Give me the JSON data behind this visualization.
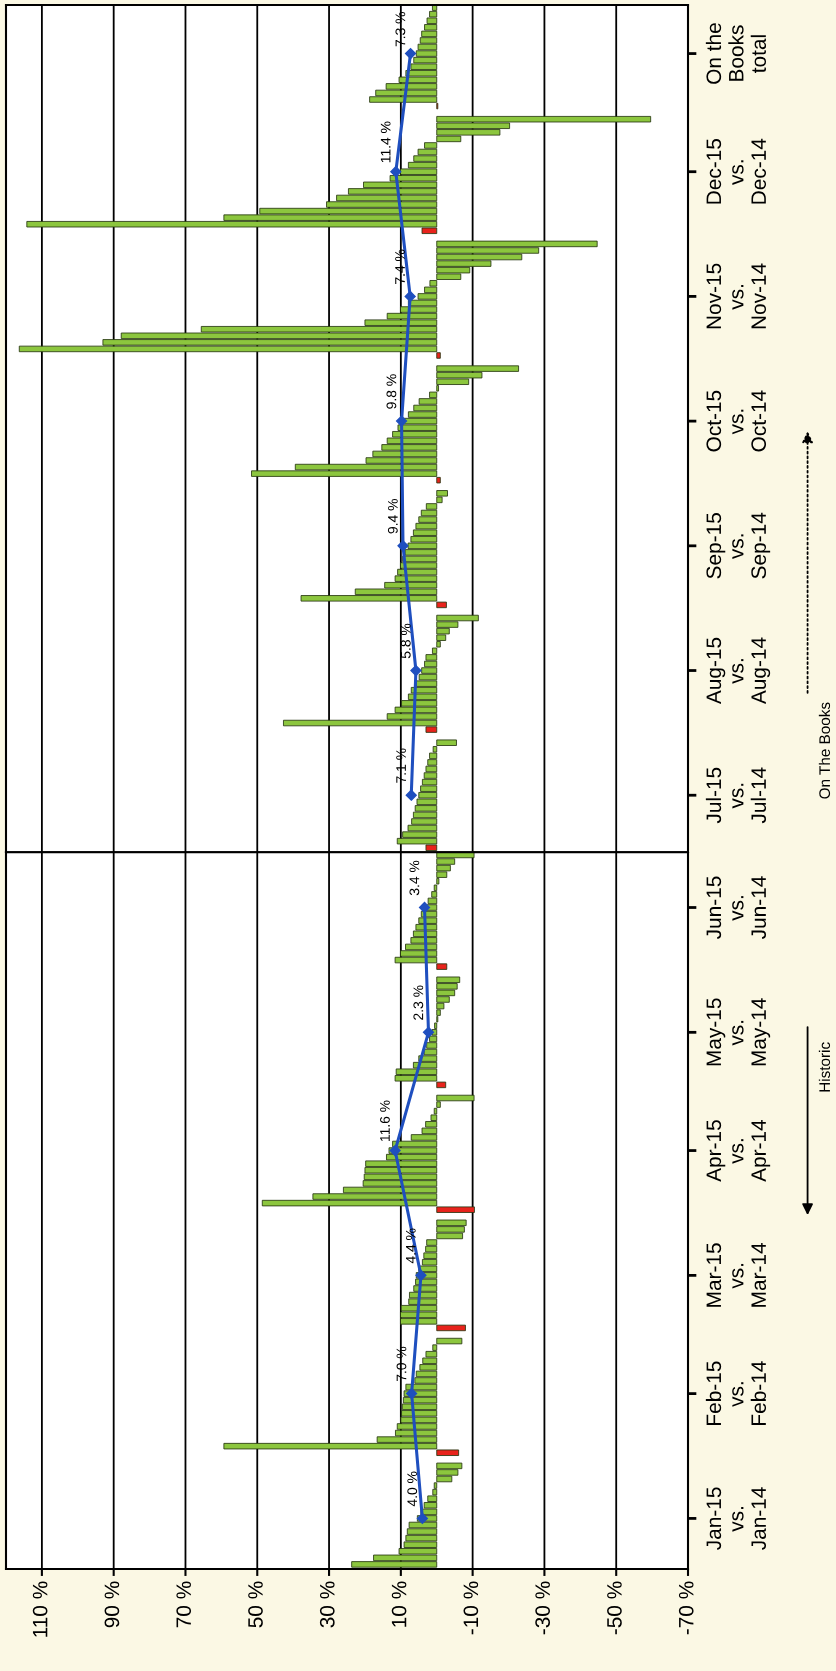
{
  "chart_data": [
    {
      "type": "bar",
      "orientation": "horizontal",
      "tick_labels": "y",
      "xlim": [
        120,
        -70
      ],
      "xticks": [
        110,
        90,
        70,
        50,
        30,
        10,
        -10,
        -30,
        -50,
        -70
      ],
      "grid": "x",
      "categories": [
        null,
        null,
        null,
        null,
        null,
        null,
        null,
        "On the\nBooks\ntotal",
        null,
        null,
        null,
        null,
        null,
        null,
        null,
        null,
        null,
        null,
        null,
        null,
        null,
        null,
        null,
        null,
        null,
        "Dec-15\nvs.\nDec-14",
        null,
        null,
        null,
        null,
        null,
        null,
        null,
        null,
        null,
        null,
        null,
        null,
        null,
        null,
        null,
        null,
        null,
        null,
        "Nov-15\nvs.\nNov-14",
        null,
        null,
        null,
        null,
        null,
        null,
        null,
        null,
        null,
        null,
        null,
        null,
        null,
        null,
        null,
        null,
        null,
        null,
        "Oct-15\nvs.\nOct-14",
        null,
        null,
        null,
        null,
        null,
        null,
        null,
        null,
        null,
        null,
        null,
        null,
        null,
        null,
        null,
        null,
        null,
        null,
        "Sep-15\nvs.\nSep-14",
        null,
        null,
        null,
        null,
        null,
        null,
        null,
        null,
        null,
        null,
        null,
        null,
        null,
        null,
        null,
        null,
        null,
        null,
        "Aug-15\nvs.\nAug-14",
        null,
        null,
        null,
        null,
        null,
        null,
        null,
        null,
        null,
        null,
        null,
        null,
        null,
        null,
        null,
        null,
        null,
        null,
        "Jul-15\nvs.\nJul-14",
        null,
        null,
        null,
        null,
        null,
        null,
        null,
        null
      ],
      "series": [
        {
          "values": [
            1.2,
            2.0,
            2.7,
            3.4,
            4.2,
            4.6,
            5.2,
            5.7,
            6.4,
            7.2,
            8.6,
            10.5,
            14.1,
            17.0,
            18.7,
            -0.3,
            null,
            -59.6,
            -20.3,
            -17.6,
            -6.7,
            3.4,
            5.2,
            6.4,
            7.9,
            10.1,
            13.0,
            20.4,
            24.6,
            27.9,
            30.7,
            49.3,
            59.3,
            114.2,
            4.1,
            null,
            -44.7,
            -28.4,
            -23.7,
            -15.1,
            -9.2,
            -6.7,
            1.9,
            3.4,
            5.2,
            7.9,
            10.1,
            13.8,
            20.0,
            65.6,
            87.9,
            93.0,
            116.3,
            -1.0,
            null,
            -22.8,
            -12.6,
            -8.9,
            -0.5,
            2.0,
            4.9,
            6.4,
            7.9,
            9.3,
            10.8,
            12.3,
            13.8,
            15.3,
            17.8,
            19.7,
            39.4,
            51.6,
            -1.0,
            null,
            -3.0,
            -1.5,
            2.9,
            4.3,
            5.0,
            5.8,
            6.5,
            7.2,
            8.0,
            8.8,
            9.5,
            10.1,
            10.9,
            11.6,
            14.5,
            22.7,
            37.8,
            -2.7,
            null,
            -11.6,
            -5.9,
            -3.5,
            -2.5,
            -1.0,
            1.2,
            3.0,
            3.4,
            4.2,
            4.9,
            5.7,
            7.1,
            7.9,
            9.8,
            11.6,
            13.8,
            42.7,
            3.0,
            null,
            -5.5,
            1.0,
            2.0,
            2.5,
            3.0,
            3.5,
            4.0,
            4.5,
            5.0,
            5.5,
            6.0,
            6.5,
            7.0,
            8.0,
            9.5,
            11.0,
            3.0
          ],
          "colors": [
            "#8cc63e",
            "#8cc63e",
            "#8cc63e",
            "#8cc63e",
            "#8cc63e",
            "#8cc63e",
            "#8cc63e",
            "#8cc63e",
            "#8cc63e",
            "#8cc63e",
            "#8cc63e",
            "#8cc63e",
            "#8cc63e",
            "#8cc63e",
            "#8cc63e",
            "#e8231c",
            null,
            "#8cc63e",
            "#8cc63e",
            "#8cc63e",
            "#8cc63e",
            "#8cc63e",
            "#8cc63e",
            "#8cc63e",
            "#8cc63e",
            "#8cc63e",
            "#8cc63e",
            "#8cc63e",
            "#8cc63e",
            "#8cc63e",
            "#8cc63e",
            "#8cc63e",
            "#8cc63e",
            "#8cc63e",
            "#e8231c",
            null,
            "#8cc63e",
            "#8cc63e",
            "#8cc63e",
            "#8cc63e",
            "#8cc63e",
            "#8cc63e",
            "#8cc63e",
            "#8cc63e",
            "#8cc63e",
            "#8cc63e",
            "#8cc63e",
            "#8cc63e",
            "#8cc63e",
            "#8cc63e",
            "#8cc63e",
            "#8cc63e",
            "#8cc63e",
            "#e8231c",
            null,
            "#8cc63e",
            "#8cc63e",
            "#8cc63e",
            "#8cc63e",
            "#8cc63e",
            "#8cc63e",
            "#8cc63e",
            "#8cc63e",
            "#8cc63e",
            "#8cc63e",
            "#8cc63e",
            "#8cc63e",
            "#8cc63e",
            "#8cc63e",
            "#8cc63e",
            "#8cc63e",
            "#8cc63e",
            "#e8231c",
            null,
            "#8cc63e",
            "#8cc63e",
            "#8cc63e",
            "#8cc63e",
            "#8cc63e",
            "#8cc63e",
            "#8cc63e",
            "#8cc63e",
            "#8cc63e",
            "#8cc63e",
            "#8cc63e",
            "#8cc63e",
            "#8cc63e",
            "#8cc63e",
            "#8cc63e",
            "#8cc63e",
            "#8cc63e",
            "#e8231c",
            null,
            "#8cc63e",
            "#8cc63e",
            "#8cc63e",
            "#8cc63e",
            "#8cc63e",
            "#8cc63e",
            "#8cc63e",
            "#8cc63e",
            "#8cc63e",
            "#8cc63e",
            "#8cc63e",
            "#8cc63e",
            "#8cc63e",
            "#8cc63e",
            "#8cc63e",
            "#8cc63e",
            "#8cc63e",
            "#e8231c",
            null,
            "#8cc63e",
            "#8cc63e",
            "#8cc63e",
            "#8cc63e",
            "#8cc63e",
            "#8cc63e",
            "#8cc63e",
            "#8cc63e",
            "#8cc63e",
            "#8cc63e",
            "#8cc63e",
            "#8cc63e",
            "#8cc63e",
            "#8cc63e",
            "#8cc63e",
            "#8cc63e",
            "#e8231c"
          ]
        },
        {
          "type": "line",
          "color": "#1f4fbf",
          "marker": "diamond",
          "line_style": "solid",
          "values": [
            null,
            null,
            null,
            null,
            null,
            null,
            null,
            7.3,
            null,
            null,
            null,
            null,
            null,
            null,
            null,
            null,
            null,
            null,
            null,
            null,
            null,
            null,
            null,
            null,
            null,
            11.4,
            null,
            null,
            null,
            null,
            null,
            null,
            null,
            null,
            null,
            null,
            null,
            null,
            null,
            null,
            null,
            null,
            null,
            null,
            7.4,
            null,
            null,
            null,
            null,
            null,
            null,
            null,
            null,
            null,
            null,
            null,
            null,
            null,
            null,
            null,
            null,
            null,
            null,
            9.8,
            null,
            null,
            null,
            null,
            null,
            null,
            null,
            null,
            null,
            null,
            null,
            null,
            null,
            null,
            null,
            null,
            null,
            null,
            9.4,
            null,
            null,
            null,
            null,
            null,
            null,
            null,
            null,
            null,
            null,
            null,
            null,
            null,
            null,
            null,
            null,
            null,
            null,
            5.8,
            null,
            null,
            null,
            null,
            null,
            null,
            null,
            null,
            null,
            null,
            null,
            null,
            null,
            null,
            null,
            null,
            null,
            null,
            7.1,
            null,
            null,
            null,
            null,
            null,
            null,
            null,
            null
          ],
          "value_labels": [
            null,
            null,
            null,
            null,
            null,
            null,
            null,
            "7.3 %",
            null,
            null,
            null,
            null,
            null,
            null,
            null,
            null,
            null,
            null,
            null,
            null,
            null,
            null,
            null,
            null,
            null,
            "11.4 %",
            null,
            null,
            null,
            null,
            null,
            null,
            null,
            null,
            null,
            null,
            null,
            null,
            null,
            null,
            null,
            null,
            null,
            null,
            "7.4 %",
            null,
            null,
            null,
            null,
            null,
            null,
            null,
            null,
            null,
            null,
            null,
            null,
            null,
            null,
            null,
            null,
            null,
            null,
            "9.8 %",
            null,
            null,
            null,
            null,
            null,
            null,
            null,
            null,
            null,
            null,
            null,
            null,
            null,
            null,
            null,
            null,
            null,
            null,
            "9.4 %",
            null,
            null,
            null,
            null,
            null,
            null,
            null,
            null,
            null,
            null,
            null,
            null,
            null,
            null,
            null,
            null,
            null,
            null,
            "5.8 %",
            null,
            null,
            null,
            null,
            null,
            null,
            null,
            null,
            null,
            null,
            null,
            null,
            null,
            null,
            null,
            null,
            null,
            null,
            "7.1 %",
            null,
            null,
            null,
            null,
            null,
            null,
            null,
            null
          ]
        }
      ],
      "annotations": [
        "On The Books"
      ]
    },
    {
      "type": "bar",
      "orientation": "horizontal",
      "xlim": [
        120,
        -70
      ],
      "xticks": [
        {
          "value": 110,
          "label": "110 %"
        },
        {
          "value": 90,
          "label": "90 %"
        },
        {
          "value": 70,
          "label": "70 %"
        },
        {
          "value": 50,
          "label": "50 %"
        },
        {
          "value": 30,
          "label": "30 %"
        },
        {
          "value": 10,
          "label": "10 %"
        },
        {
          "value": -10,
          "label": "-10 %"
        },
        {
          "value": -30,
          "label": "-30 %"
        },
        {
          "value": -50,
          "label": "-50 %"
        },
        {
          "value": -70,
          "label": "-70 %"
        }
      ],
      "grid": "x",
      "categories": [
        null,
        null,
        null,
        null,
        null,
        null,
        null,
        null,
        "Jun-15\nvs.\nJun-14",
        null,
        null,
        null,
        null,
        null,
        null,
        null,
        null,
        null,
        null,
        null,
        null,
        null,
        null,
        null,
        null,
        null,
        null,
        "May-15\nvs.\nMay-14",
        null,
        null,
        null,
        null,
        null,
        null,
        null,
        null,
        null,
        null,
        null,
        null,
        null,
        null,
        null,
        null,
        null,
        "Apr-15\nvs.\nApr-14",
        null,
        null,
        null,
        null,
        null,
        null,
        null,
        null,
        null,
        null,
        null,
        null,
        null,
        null,
        null,
        null,
        null,
        null,
        "Mar-15\nvs.\nMar-14",
        null,
        null,
        null,
        null,
        null,
        null,
        null,
        null,
        null,
        null,
        null,
        null,
        null,
        null,
        null,
        null,
        null,
        "Feb-15\nvs.\nFeb-14",
        null,
        null,
        null,
        null,
        null,
        null,
        null,
        null,
        null,
        null,
        null,
        null,
        null,
        null,
        null,
        null,
        null,
        null,
        "Jan-15\nvs.\nJan-14",
        null,
        null,
        null,
        null,
        null,
        null,
        null
      ],
      "series": [
        {
          "values": [
            -10.4,
            -5.0,
            -3.8,
            -2.8,
            -0.6,
            0.7,
            1.4,
            2.4,
            3.6,
            4.3,
            5.0,
            5.8,
            6.5,
            7.2,
            8.7,
            10.1,
            11.6,
            -2.8,
            null,
            -6.4,
            -5.7,
            -5.0,
            -3.5,
            -2.0,
            -1.0,
            -0.3,
            0.6,
            1.3,
            2.0,
            2.8,
            3.5,
            5.0,
            6.5,
            11.3,
            11.6,
            -2.5,
            null,
            -10.4,
            -1.0,
            0.7,
            1.6,
            3.1,
            4.1,
            7.1,
            12.3,
            13.3,
            14.0,
            19.8,
            20.0,
            20.2,
            20.5,
            26.0,
            34.5,
            48.6,
            -10.5,
            null,
            -8.2,
            -7.7,
            -7.2,
            2.8,
            3.1,
            3.6,
            4.0,
            5.0,
            5.7,
            5.9,
            6.4,
            7.6,
            7.8,
            9.9,
            10.1,
            10.1,
            -8.0,
            null,
            -7.0,
            1.1,
            3.0,
            3.9,
            4.7,
            5.7,
            6.1,
            8.6,
            9.1,
            9.3,
            9.6,
            9.8,
            10.0,
            11.0,
            11.5,
            16.6,
            59.3,
            -6.1,
            null,
            -7.0,
            -5.9,
            -4.2,
            0.7,
            1.1,
            2.5,
            3.5,
            4.4,
            5.4,
            7.7,
            8.2,
            8.6,
            9.1,
            10.5,
            17.6,
            23.7
          ],
          "colors": [
            "#8cc63e",
            "#8cc63e",
            "#8cc63e",
            "#8cc63e",
            "#8cc63e",
            "#8cc63e",
            "#8cc63e",
            "#8cc63e",
            "#8cc63e",
            "#8cc63e",
            "#8cc63e",
            "#8cc63e",
            "#8cc63e",
            "#8cc63e",
            "#8cc63e",
            "#8cc63e",
            "#8cc63e",
            "#e8231c",
            null,
            "#8cc63e",
            "#8cc63e",
            "#8cc63e",
            "#8cc63e",
            "#8cc63e",
            "#8cc63e",
            "#8cc63e",
            "#8cc63e",
            "#8cc63e",
            "#8cc63e",
            "#8cc63e",
            "#8cc63e",
            "#8cc63e",
            "#8cc63e",
            "#8cc63e",
            "#8cc63e",
            "#e8231c",
            null,
            "#8cc63e",
            "#8cc63e",
            "#8cc63e",
            "#8cc63e",
            "#8cc63e",
            "#8cc63e",
            "#8cc63e",
            "#8cc63e",
            "#8cc63e",
            "#8cc63e",
            "#8cc63e",
            "#8cc63e",
            "#8cc63e",
            "#8cc63e",
            "#8cc63e",
            "#8cc63e",
            "#8cc63e",
            "#e8231c",
            null,
            "#8cc63e",
            "#8cc63e",
            "#8cc63e",
            "#8cc63e",
            "#8cc63e",
            "#8cc63e",
            "#8cc63e",
            "#8cc63e",
            "#8cc63e",
            "#8cc63e",
            "#8cc63e",
            "#8cc63e",
            "#8cc63e",
            "#8cc63e",
            "#8cc63e",
            "#8cc63e",
            "#e8231c",
            null,
            "#8cc63e",
            "#8cc63e",
            "#8cc63e",
            "#8cc63e",
            "#8cc63e",
            "#8cc63e",
            "#8cc63e",
            "#8cc63e",
            "#8cc63e",
            "#8cc63e",
            "#8cc63e",
            "#8cc63e",
            "#8cc63e",
            "#8cc63e",
            "#8cc63e",
            "#8cc63e",
            "#8cc63e",
            "#e8231c",
            null,
            "#8cc63e",
            "#8cc63e",
            "#8cc63e",
            "#8cc63e",
            "#8cc63e",
            "#8cc63e",
            "#8cc63e",
            "#8cc63e",
            "#8cc63e",
            "#8cc63e",
            "#8cc63e",
            "#8cc63e",
            "#8cc63e",
            "#8cc63e",
            "#8cc63e",
            "#8cc63e"
          ]
        },
        {
          "type": "line",
          "color": "#1f4fbf",
          "marker": "diamond",
          "line_style": "solid",
          "values": [
            null,
            null,
            null,
            null,
            null,
            null,
            null,
            null,
            3.4,
            null,
            null,
            null,
            null,
            null,
            null,
            null,
            null,
            null,
            null,
            null,
            null,
            null,
            null,
            null,
            null,
            null,
            null,
            2.3,
            null,
            null,
            null,
            null,
            null,
            null,
            null,
            null,
            null,
            null,
            null,
            null,
            null,
            null,
            null,
            null,
            null,
            11.6,
            null,
            null,
            null,
            null,
            null,
            null,
            null,
            null,
            null,
            null,
            null,
            null,
            null,
            null,
            null,
            null,
            null,
            null,
            4.4,
            null,
            null,
            null,
            null,
            null,
            null,
            null,
            null,
            null,
            null,
            null,
            null,
            null,
            null,
            null,
            null,
            null,
            7.0,
            null,
            null,
            null,
            null,
            null,
            null,
            null,
            null,
            null,
            null,
            null,
            null,
            null,
            null,
            null,
            null,
            null,
            null,
            4.0,
            null,
            null,
            null,
            null,
            null,
            null,
            null
          ],
          "value_labels": [
            null,
            null,
            null,
            null,
            null,
            null,
            null,
            null,
            "3.4 %",
            null,
            null,
            null,
            null,
            null,
            null,
            null,
            null,
            null,
            null,
            null,
            null,
            null,
            null,
            null,
            null,
            null,
            null,
            "2.3 %",
            null,
            null,
            null,
            null,
            null,
            null,
            null,
            null,
            null,
            null,
            null,
            null,
            null,
            null,
            null,
            null,
            null,
            "11.6 %",
            null,
            null,
            null,
            null,
            null,
            null,
            null,
            null,
            null,
            null,
            null,
            null,
            null,
            null,
            null,
            null,
            null,
            null,
            "4.4 %",
            null,
            null,
            null,
            null,
            null,
            null,
            null,
            null,
            null,
            null,
            null,
            null,
            null,
            null,
            null,
            null,
            null,
            "7.0 %",
            null,
            null,
            null,
            null,
            null,
            null,
            null,
            null,
            null,
            null,
            null,
            null,
            null,
            null,
            null,
            null,
            null,
            null,
            "4.0 %",
            null,
            null,
            null,
            null,
            null,
            null,
            null
          ]
        }
      ],
      "annotations": [
        "Historic"
      ]
    }
  ]
}
